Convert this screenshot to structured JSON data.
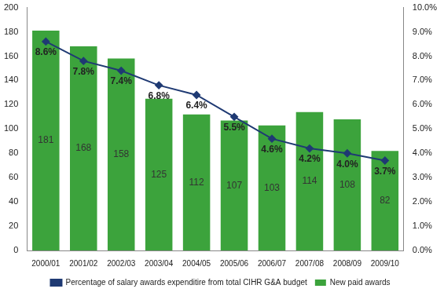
{
  "chart_data": {
    "type": "bar",
    "categories": [
      "2000/01",
      "2001/02",
      "2002/03",
      "2003/04",
      "2004/05",
      "2005/06",
      "2006/07",
      "2007/08",
      "2008/09",
      "2009/10"
    ],
    "series": [
      {
        "name": "New paid awards",
        "type": "bar",
        "color": "#3ca33c",
        "values": [
          181,
          168,
          158,
          125,
          112,
          107,
          103,
          114,
          108,
          82
        ]
      },
      {
        "name": "Percentage of salary awards expenditire from total CIHR G&A budget",
        "type": "line",
        "axis": "y2",
        "color": "#1f3a73",
        "marker": "diamond",
        "values": [
          8.6,
          7.8,
          7.4,
          6.8,
          6.4,
          5.5,
          4.6,
          4.2,
          4.0,
          3.7
        ],
        "value_labels": [
          "8.6%",
          "7.8%",
          "7.4%",
          "6.8%",
          "6.4%",
          "5.5%",
          "4.6%",
          "4.2%",
          "4.0%",
          "3.7%"
        ]
      }
    ],
    "ylim": [
      0,
      200
    ],
    "yticks": [
      0,
      20,
      40,
      60,
      80,
      100,
      120,
      140,
      160,
      180,
      200
    ],
    "y2lim": [
      0,
      10
    ],
    "y2ticks": [
      {
        "value": 0,
        "label": "0.0%"
      },
      {
        "value": 1,
        "label": "1.0%"
      },
      {
        "value": 2,
        "label": "2.0%"
      },
      {
        "value": 3,
        "label": "3.0%"
      },
      {
        "value": 4,
        "label": "4.0%"
      },
      {
        "value": 5,
        "label": "5.0%"
      },
      {
        "value": 6,
        "label": "6.0%"
      },
      {
        "value": 7,
        "label": "7.0%"
      },
      {
        "value": 8,
        "label": "8.0%"
      },
      {
        "value": 9,
        "label": "9.0%"
      },
      {
        "value": 10,
        "label": "10.0%"
      }
    ],
    "grid": false,
    "legend": "bottom",
    "data_labels": true
  }
}
